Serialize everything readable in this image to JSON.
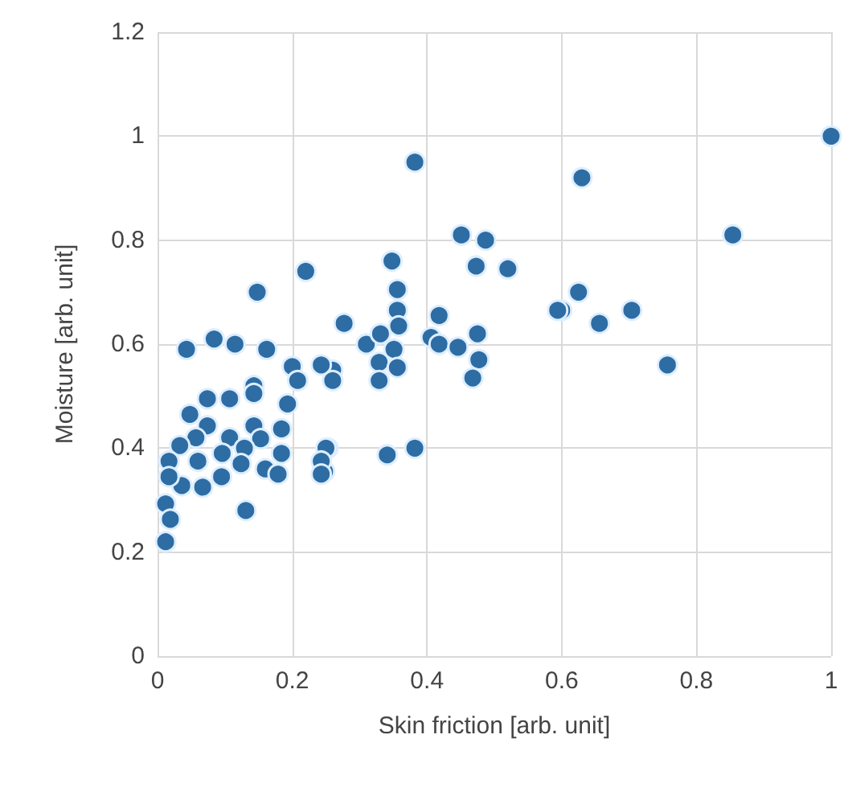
{
  "chart_data": {
    "type": "scatter",
    "xlabel": "Skin friction [arb. unit]",
    "ylabel": "Moisture [arb. unit]",
    "xlim": [
      0,
      1
    ],
    "xticks": [
      0,
      0.2,
      0.4,
      0.6,
      0.8,
      1
    ],
    "ylim": [
      0,
      1.2
    ],
    "yticks": [
      0,
      0.2,
      0.4,
      0.6,
      0.8,
      1,
      1.2
    ],
    "grid": true,
    "marker": "circle",
    "series": [
      {
        "color": "#2e6ca4",
        "x": [
          1.0,
          0.854,
          0.63,
          0.625,
          0.6,
          0.656,
          0.704,
          0.757,
          0.382,
          0.451,
          0.487,
          0.473,
          0.52,
          0.594,
          0.348,
          0.356,
          0.356,
          0.358,
          0.277,
          0.31,
          0.331,
          0.351,
          0.329,
          0.356,
          0.329,
          0.418,
          0.406,
          0.418,
          0.446,
          0.475,
          0.477,
          0.468,
          0.26,
          0.26,
          0.253,
          0.248,
          0.341,
          0.382,
          0.22,
          0.148,
          0.043,
          0.084,
          0.115,
          0.162,
          0.2,
          0.208,
          0.243,
          0.143,
          0.143,
          0.074,
          0.107,
          0.193,
          0.048,
          0.074,
          0.057,
          0.033,
          0.107,
          0.143,
          0.184,
          0.153,
          0.017,
          0.06,
          0.096,
          0.129,
          0.184,
          0.16,
          0.179,
          0.124,
          0.095,
          0.067,
          0.036,
          0.017,
          0.012,
          0.019,
          0.012,
          0.131,
          0.25,
          0.243,
          0.243
        ],
        "values": [
          1.0,
          0.81,
          0.92,
          0.7,
          0.665,
          0.64,
          0.665,
          0.56,
          0.95,
          0.81,
          0.8,
          0.75,
          0.745,
          0.665,
          0.76,
          0.705,
          0.665,
          0.635,
          0.64,
          0.6,
          0.62,
          0.59,
          0.565,
          0.555,
          0.53,
          0.655,
          0.613,
          0.6,
          0.594,
          0.62,
          0.57,
          0.535,
          0.55,
          0.53,
          0.4,
          0.355,
          0.387,
          0.4,
          0.74,
          0.7,
          0.59,
          0.61,
          0.6,
          0.59,
          0.557,
          0.53,
          0.56,
          0.52,
          0.505,
          0.495,
          0.495,
          0.485,
          0.465,
          0.443,
          0.42,
          0.405,
          0.42,
          0.443,
          0.437,
          0.418,
          0.375,
          0.375,
          0.39,
          0.4,
          0.39,
          0.36,
          0.35,
          0.37,
          0.345,
          0.325,
          0.328,
          0.345,
          0.293,
          0.263,
          0.22,
          0.28,
          0.4,
          0.375,
          0.35
        ]
      }
    ]
  }
}
